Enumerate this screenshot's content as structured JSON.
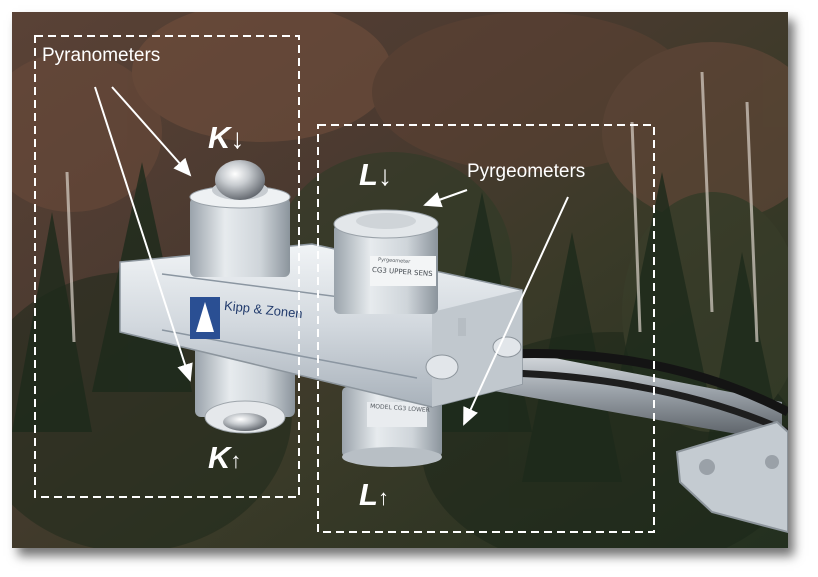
{
  "image": {
    "description_kind": "photo",
    "subject": "radiometer"
  },
  "labels": {
    "pyranometers": "Pyranometers",
    "pyrgeometers": "Pyrgeometers",
    "k_down": {
      "letter": "K",
      "arrow": "↓"
    },
    "k_up": {
      "letter": "K",
      "arrow": "↑"
    },
    "l_down": {
      "letter": "L",
      "arrow": "↓"
    },
    "l_up": {
      "letter": "L",
      "arrow": "↑"
    }
  },
  "device": {
    "brand": "Kipp & Zonen",
    "sensor_label_top": "Pyrgeometer",
    "sensor_label_main": "CG3 UPPER SENS",
    "sensor_label_bottom": "MODEL CG3 LOWER"
  },
  "colors": {
    "forest_dark": "#2a3322",
    "forest_brown": "#5a3b2c",
    "body_metal": "#d6dde3",
    "annotation": "#ffffff",
    "logo_blue": "#2a4f93"
  }
}
